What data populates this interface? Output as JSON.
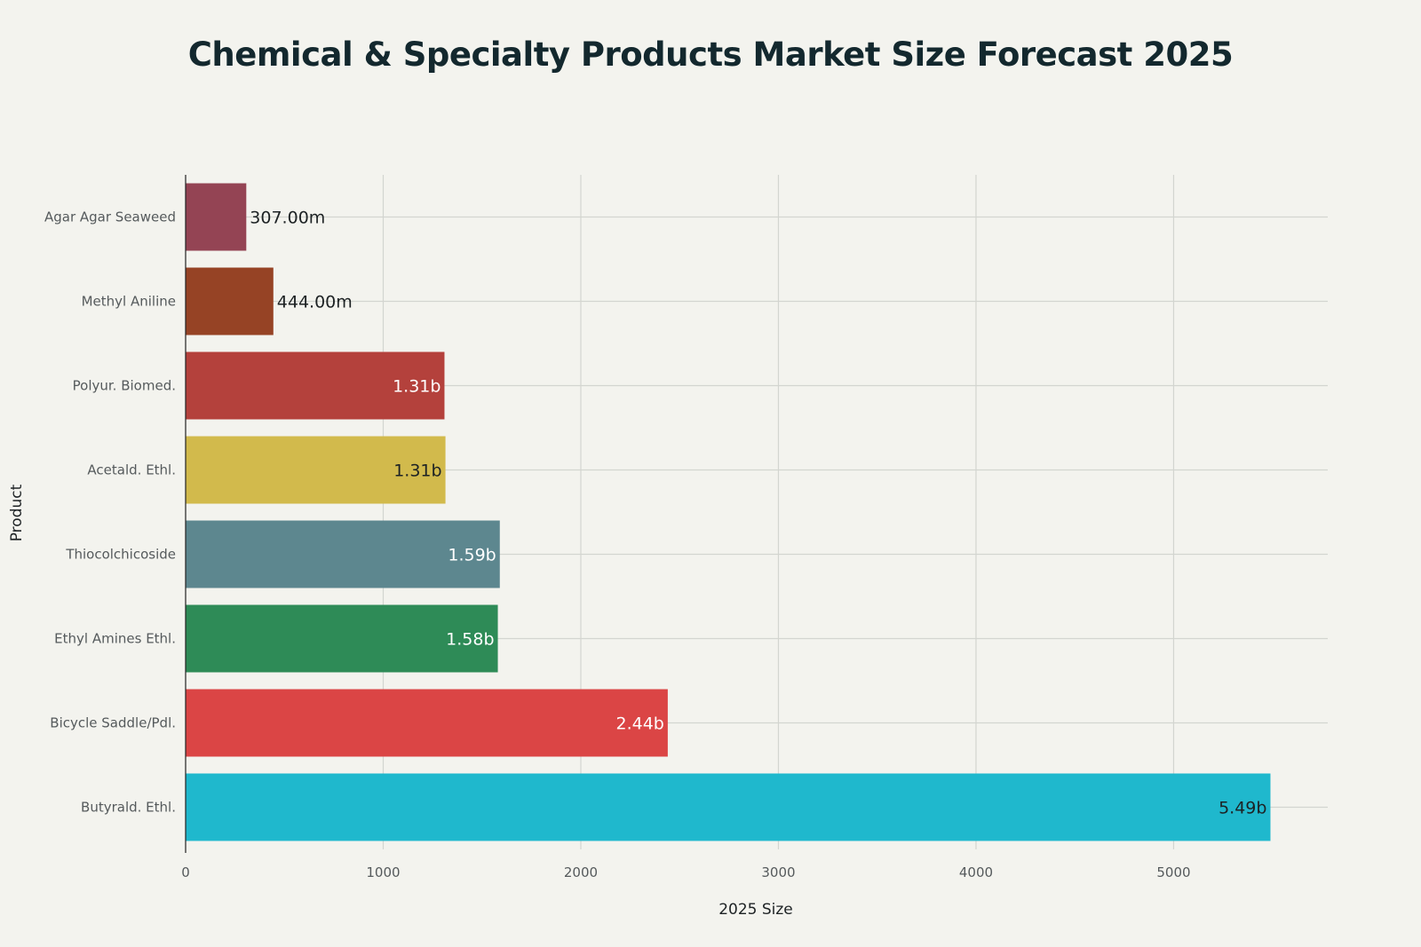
{
  "chart_data": {
    "type": "bar",
    "orientation": "horizontal",
    "title": "Chemical & Specialty Products Market Size Forecast 2025",
    "xlabel": "2025 Size",
    "ylabel": "Product",
    "xlim": [
      0,
      5780
    ],
    "xticks": [
      0,
      1000,
      2000,
      3000,
      4000,
      5000
    ],
    "grid": true,
    "categories": [
      "Agar Agar Seaweed",
      "Methyl Aniline",
      "Polyur. Biomed.",
      "Acetald. Ethl.",
      "Thiocolchicoside",
      "Ethyl Amines Ethl.",
      "Bicycle Saddle/Pdl.",
      "Butyrald. Ethl."
    ],
    "values": [
      307,
      444,
      1310,
      1315,
      1590,
      1580,
      2440,
      5490
    ],
    "labels": [
      "307.00m",
      "444.00m",
      "1.31b",
      "1.31b",
      "1.59b",
      "1.58b",
      "2.44b",
      "5.49b"
    ],
    "colors": [
      "#944454",
      "#964325",
      "#b4413c",
      "#d2ba4c",
      "#5d878f",
      "#2e8b57",
      "#db4545",
      "#1fb8cd"
    ],
    "label_colors": [
      "#1d2224",
      "#1d2224",
      "#ffffff",
      "#1d2224",
      "#ffffff",
      "#ffffff",
      "#ffffff",
      "#1d2224"
    ]
  }
}
